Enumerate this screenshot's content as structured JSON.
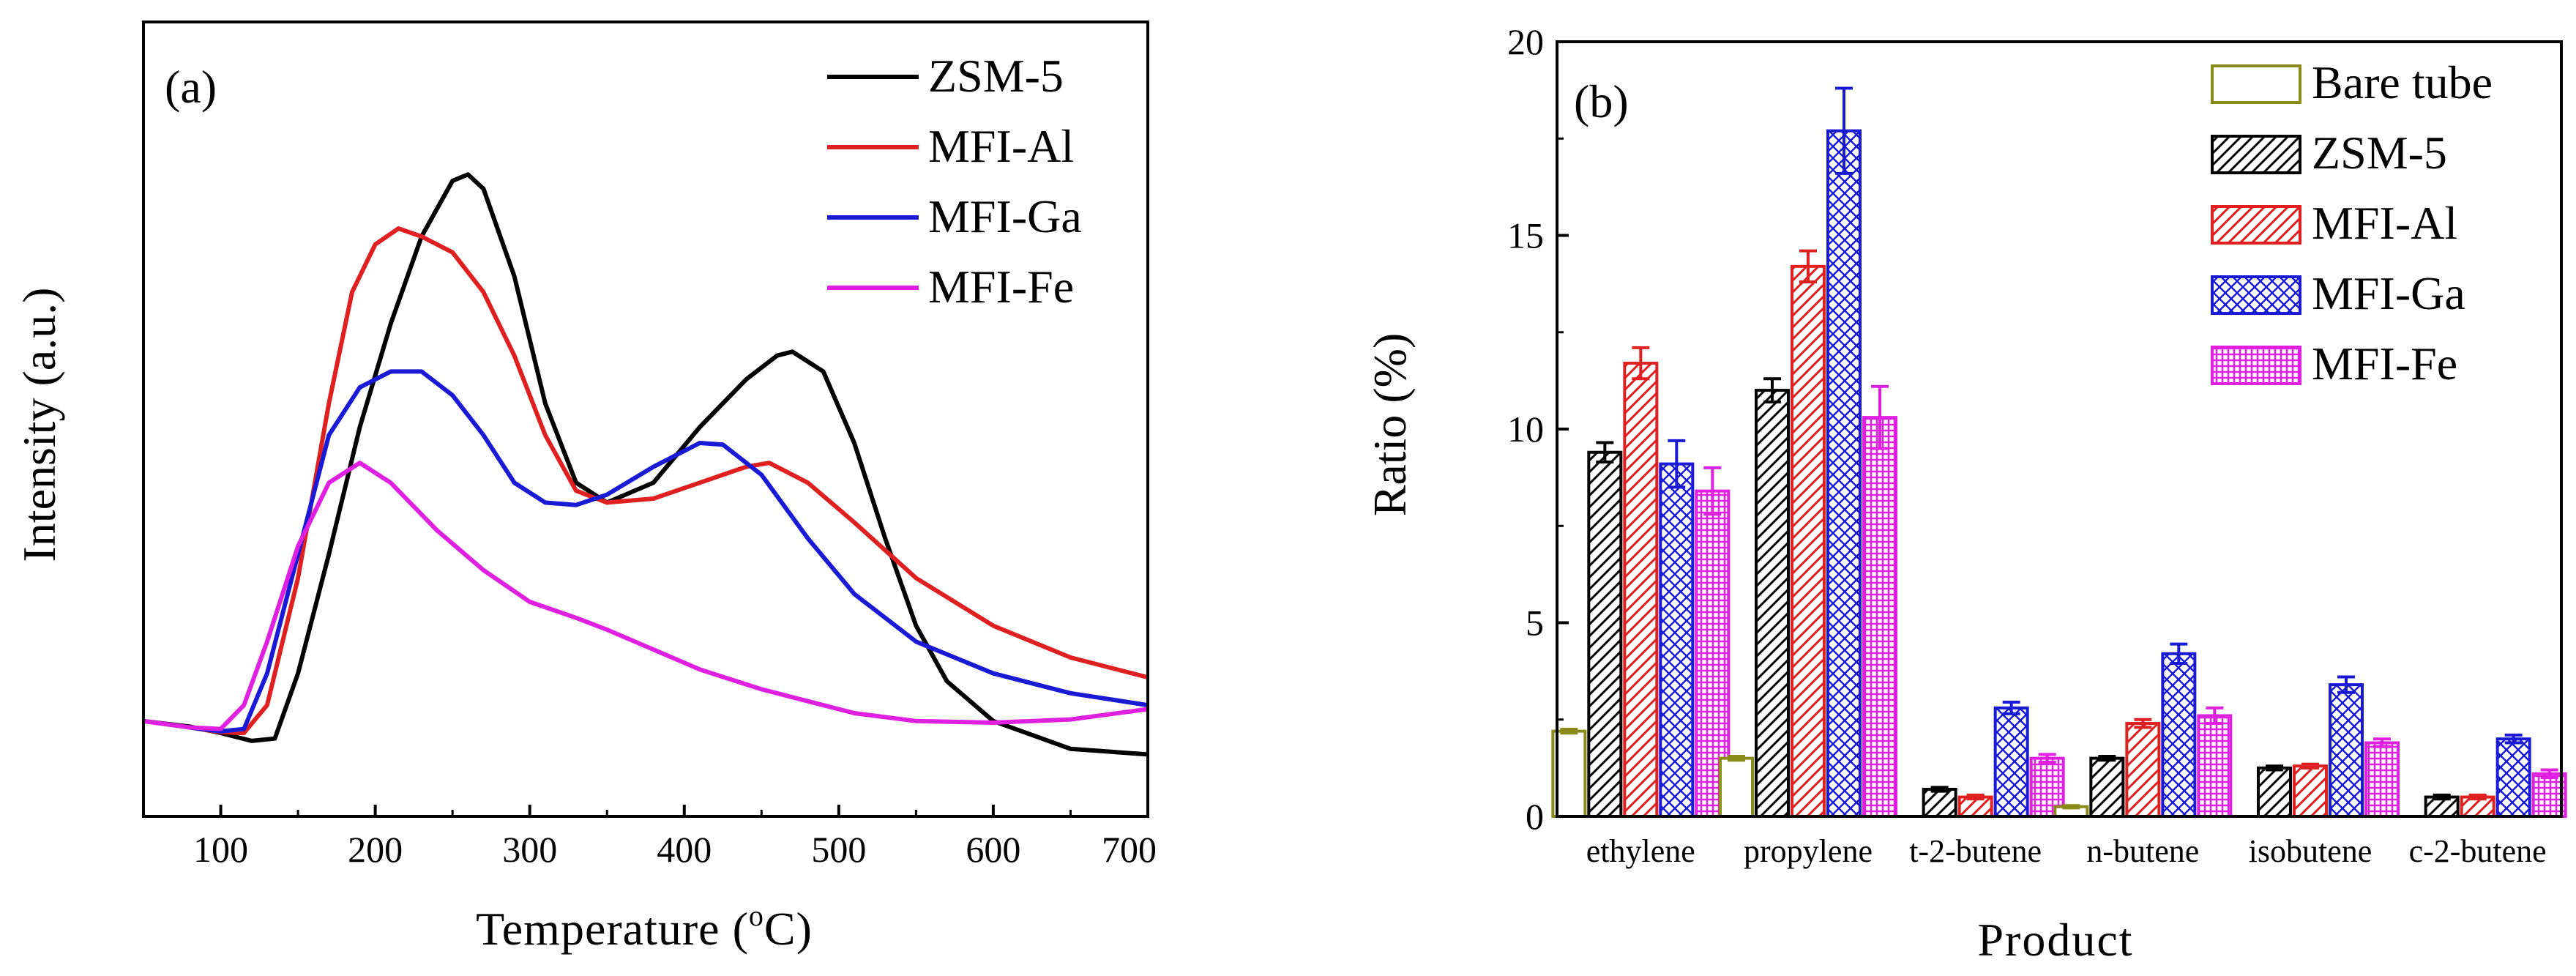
{
  "chart_data": [
    {
      "type": "line",
      "panel_label": "(a)",
      "xlabel_main": "Temperature (",
      "xlabel_sup": "o",
      "xlabel_end": "C)",
      "ylabel": "Intensity (a.u.)",
      "xlim": [
        50,
        700
      ],
      "ylim": [
        0,
        1
      ],
      "xticks": [
        "100",
        "200",
        "300",
        "400",
        "500",
        "600",
        "700"
      ],
      "legend_position": "top-right",
      "series": [
        {
          "name": "ZSM-5",
          "color": "#000000",
          "points": [
            [
              50,
              0.12
            ],
            [
              80,
              0.113
            ],
            [
              100,
              0.105
            ],
            [
              120,
              0.095
            ],
            [
              135,
              0.098
            ],
            [
              150,
              0.18
            ],
            [
              170,
              0.33
            ],
            [
              190,
              0.49
            ],
            [
              210,
              0.62
            ],
            [
              230,
              0.73
            ],
            [
              250,
              0.8
            ],
            [
              260,
              0.808
            ],
            [
              270,
              0.79
            ],
            [
              290,
              0.68
            ],
            [
              310,
              0.52
            ],
            [
              330,
              0.42
            ],
            [
              350,
              0.395
            ],
            [
              380,
              0.42
            ],
            [
              410,
              0.49
            ],
            [
              440,
              0.55
            ],
            [
              460,
              0.58
            ],
            [
              470,
              0.585
            ],
            [
              490,
              0.56
            ],
            [
              510,
              0.47
            ],
            [
              530,
              0.35
            ],
            [
              550,
              0.24
            ],
            [
              570,
              0.17
            ],
            [
              600,
              0.12
            ],
            [
              650,
              0.085
            ],
            [
              700,
              0.078
            ]
          ]
        },
        {
          "name": "MFI-Al",
          "color": "#e02020",
          "points": [
            [
              50,
              0.12
            ],
            [
              80,
              0.112
            ],
            [
              100,
              0.106
            ],
            [
              115,
              0.105
            ],
            [
              130,
              0.14
            ],
            [
              150,
              0.3
            ],
            [
              170,
              0.52
            ],
            [
              185,
              0.66
            ],
            [
              200,
              0.72
            ],
            [
              215,
              0.74
            ],
            [
              230,
              0.73
            ],
            [
              250,
              0.71
            ],
            [
              270,
              0.66
            ],
            [
              290,
              0.58
            ],
            [
              310,
              0.48
            ],
            [
              330,
              0.41
            ],
            [
              350,
              0.395
            ],
            [
              380,
              0.4
            ],
            [
              410,
              0.42
            ],
            [
              440,
              0.44
            ],
            [
              455,
              0.445
            ],
            [
              480,
              0.42
            ],
            [
              510,
              0.37
            ],
            [
              550,
              0.3
            ],
            [
              600,
              0.24
            ],
            [
              650,
              0.2
            ],
            [
              700,
              0.175
            ]
          ]
        },
        {
          "name": "MFI-Ga",
          "color": "#1a1ad6",
          "points": [
            [
              50,
              0.12
            ],
            [
              80,
              0.112
            ],
            [
              100,
              0.107
            ],
            [
              115,
              0.11
            ],
            [
              130,
              0.18
            ],
            [
              150,
              0.33
            ],
            [
              170,
              0.48
            ],
            [
              190,
              0.54
            ],
            [
              210,
              0.56
            ],
            [
              230,
              0.56
            ],
            [
              250,
              0.53
            ],
            [
              270,
              0.48
            ],
            [
              290,
              0.42
            ],
            [
              310,
              0.395
            ],
            [
              330,
              0.392
            ],
            [
              350,
              0.405
            ],
            [
              380,
              0.44
            ],
            [
              410,
              0.47
            ],
            [
              425,
              0.468
            ],
            [
              450,
              0.43
            ],
            [
              480,
              0.35
            ],
            [
              510,
              0.28
            ],
            [
              550,
              0.22
            ],
            [
              600,
              0.18
            ],
            [
              650,
              0.155
            ],
            [
              700,
              0.14
            ]
          ]
        },
        {
          "name": "MFI-Fe",
          "color": "#e020e0",
          "points": [
            [
              50,
              0.12
            ],
            [
              80,
              0.112
            ],
            [
              100,
              0.11
            ],
            [
              115,
              0.14
            ],
            [
              130,
              0.22
            ],
            [
              150,
              0.34
            ],
            [
              170,
              0.42
            ],
            [
              190,
              0.445
            ],
            [
              210,
              0.42
            ],
            [
              240,
              0.36
            ],
            [
              270,
              0.31
            ],
            [
              300,
              0.27
            ],
            [
              330,
              0.25
            ],
            [
              350,
              0.235
            ],
            [
              380,
              0.21
            ],
            [
              410,
              0.185
            ],
            [
              450,
              0.16
            ],
            [
              480,
              0.145
            ],
            [
              510,
              0.13
            ],
            [
              550,
              0.12
            ],
            [
              600,
              0.118
            ],
            [
              650,
              0.122
            ],
            [
              700,
              0.135
            ]
          ]
        }
      ]
    },
    {
      "type": "bar",
      "panel_label": "(b)",
      "xlabel": "Product",
      "ylabel": "Ratio (%)",
      "ylim": [
        0,
        20
      ],
      "yticks": [
        "0",
        "5",
        "10",
        "15",
        "20"
      ],
      "categories": [
        "ethylene",
        "propylene",
        "t-2-butene",
        "n-butene",
        "isobutene",
        "c-2-butene"
      ],
      "legend_position": "top-right",
      "series": [
        {
          "name": "Bare tube",
          "color": "#8b8b1a",
          "pattern": "none",
          "values": [
            2.2,
            1.5,
            0,
            0.25,
            0,
            0
          ],
          "errors": [
            0.05,
            0.05,
            0,
            0.03,
            0,
            0
          ]
        },
        {
          "name": "ZSM-5",
          "color": "#000000",
          "pattern": "diag",
          "values": [
            9.4,
            11.0,
            0.7,
            1.5,
            1.25,
            0.5
          ],
          "errors": [
            0.25,
            0.3,
            0.05,
            0.05,
            0.05,
            0.05
          ]
        },
        {
          "name": "MFI-Al",
          "color": "#e02020",
          "pattern": "diag",
          "values": [
            11.7,
            14.2,
            0.5,
            2.4,
            1.3,
            0.5
          ],
          "errors": [
            0.4,
            0.4,
            0.05,
            0.1,
            0.05,
            0.05
          ]
        },
        {
          "name": "MFI-Ga",
          "color": "#1a1ad6",
          "pattern": "cross",
          "values": [
            9.1,
            17.7,
            2.8,
            4.2,
            3.4,
            2.0
          ],
          "errors": [
            0.6,
            1.1,
            0.15,
            0.25,
            0.2,
            0.1
          ]
        },
        {
          "name": "MFI-Fe",
          "color": "#e020e0",
          "pattern": "grid",
          "values": [
            8.4,
            10.3,
            1.5,
            2.6,
            1.9,
            1.1
          ],
          "errors": [
            0.6,
            0.8,
            0.1,
            0.2,
            0.1,
            0.1
          ]
        }
      ]
    }
  ]
}
